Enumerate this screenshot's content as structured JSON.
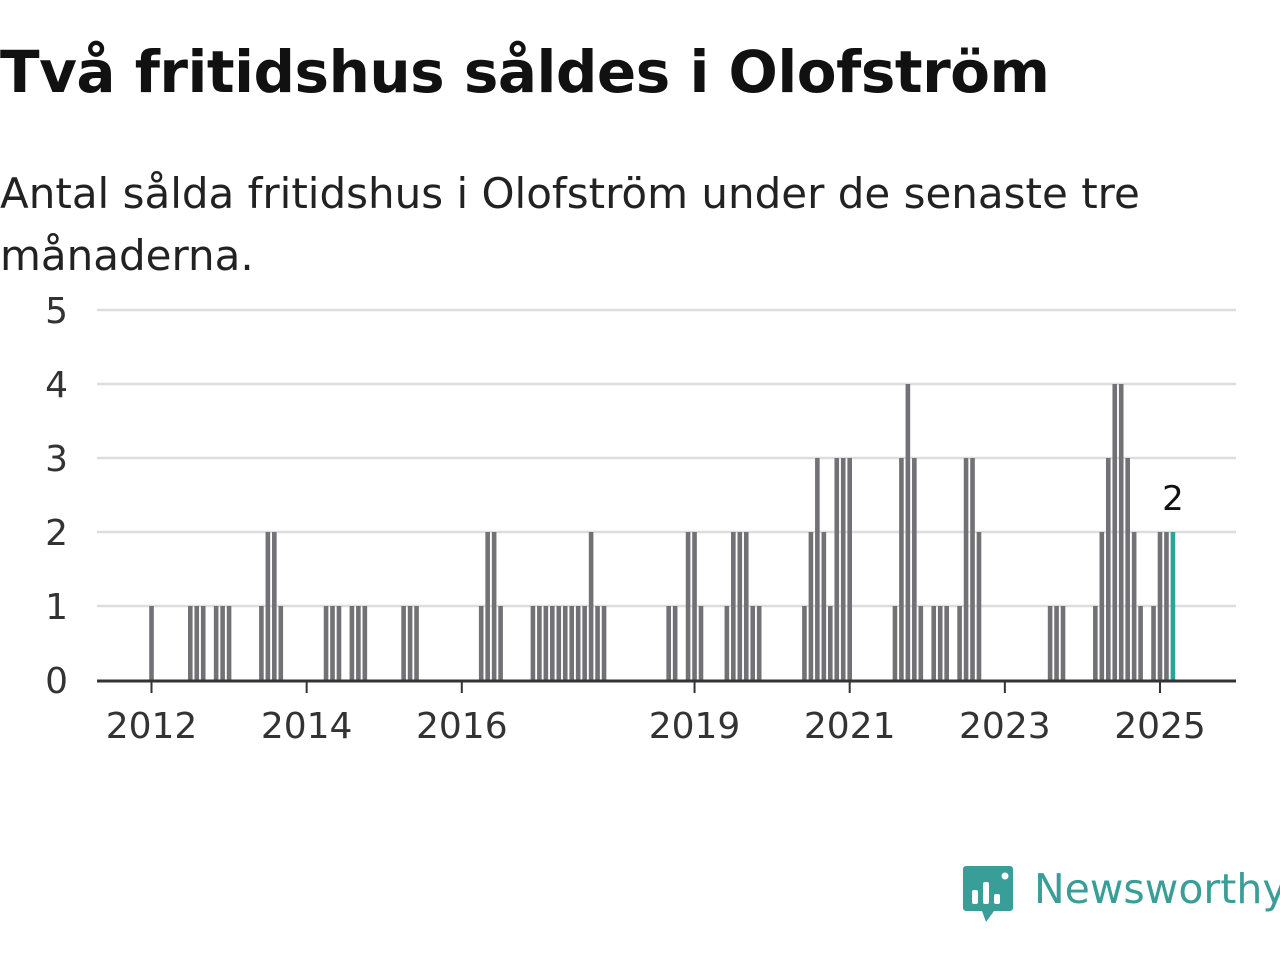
{
  "title": "Två fritidshus såldes i Olofström",
  "subtitle": "Antal sålda fritidshus i Olofström under de senaste tre månaderna.",
  "brand": {
    "name": "Newsworthy",
    "icon": "newsworthy-logo-icon",
    "color": "#3a9e98"
  },
  "colors": {
    "bar": "#727176",
    "highlight": "#2aa39a",
    "grid": "#dddddd",
    "axis": "#333333",
    "text": "#333333"
  },
  "chart_data": {
    "type": "bar",
    "title": "Två fritidshus såldes i Olofström",
    "subtitle": "Antal sålda fritidshus i Olofström under de senaste tre månaderna.",
    "xlabel": "",
    "ylabel": "",
    "ylim": [
      0,
      5
    ],
    "yticks": [
      "0",
      "1",
      "2",
      "3",
      "4",
      "5"
    ],
    "xticks": [
      "2012",
      "2014",
      "2016",
      "2019",
      "2021",
      "2023",
      "2025"
    ],
    "grid": true,
    "last_value_label": "2",
    "bars": [
      [
        "2012-01",
        1
      ],
      [
        "2012-07",
        1
      ],
      [
        "2012-08",
        1
      ],
      [
        "2012-09",
        1
      ],
      [
        "2012-11",
        1
      ],
      [
        "2012-12",
        1
      ],
      [
        "2013-01",
        1
      ],
      [
        "2013-06",
        1
      ],
      [
        "2013-07",
        2
      ],
      [
        "2013-08",
        2
      ],
      [
        "2013-09",
        1
      ],
      [
        "2014-04",
        1
      ],
      [
        "2014-05",
        1
      ],
      [
        "2014-06",
        1
      ],
      [
        "2014-08",
        1
      ],
      [
        "2014-09",
        1
      ],
      [
        "2014-10",
        1
      ],
      [
        "2015-04",
        1
      ],
      [
        "2015-05",
        1
      ],
      [
        "2015-06",
        1
      ],
      [
        "2016-04",
        1
      ],
      [
        "2016-05",
        2
      ],
      [
        "2016-06",
        2
      ],
      [
        "2016-07",
        1
      ],
      [
        "2016-12",
        1
      ],
      [
        "2017-01",
        1
      ],
      [
        "2017-02",
        1
      ],
      [
        "2017-03",
        1
      ],
      [
        "2017-04",
        1
      ],
      [
        "2017-05",
        1
      ],
      [
        "2017-06",
        1
      ],
      [
        "2017-07",
        1
      ],
      [
        "2017-08",
        1
      ],
      [
        "2017-09",
        2
      ],
      [
        "2017-10",
        1
      ],
      [
        "2017-11",
        1
      ],
      [
        "2018-09",
        1
      ],
      [
        "2018-10",
        1
      ],
      [
        "2018-12",
        2
      ],
      [
        "2019-01",
        2
      ],
      [
        "2019-02",
        1
      ],
      [
        "2019-06",
        1
      ],
      [
        "2019-07",
        2
      ],
      [
        "2019-08",
        2
      ],
      [
        "2019-09",
        2
      ],
      [
        "2019-10",
        1
      ],
      [
        "2019-11",
        1
      ],
      [
        "2020-06",
        1
      ],
      [
        "2020-07",
        2
      ],
      [
        "2020-08",
        3
      ],
      [
        "2020-09",
        2
      ],
      [
        "2020-10",
        1
      ],
      [
        "2020-11",
        3
      ],
      [
        "2020-12",
        3
      ],
      [
        "2021-01",
        3
      ],
      [
        "2021-08",
        1
      ],
      [
        "2021-09",
        3
      ],
      [
        "2021-10",
        4
      ],
      [
        "2021-11",
        3
      ],
      [
        "2021-12",
        1
      ],
      [
        "2022-02",
        1
      ],
      [
        "2022-03",
        1
      ],
      [
        "2022-04",
        1
      ],
      [
        "2022-06",
        1
      ],
      [
        "2022-07",
        3
      ],
      [
        "2022-08",
        3
      ],
      [
        "2022-09",
        2
      ],
      [
        "2023-08",
        1
      ],
      [
        "2023-09",
        1
      ],
      [
        "2023-10",
        1
      ],
      [
        "2024-03",
        1
      ],
      [
        "2024-04",
        2
      ],
      [
        "2024-05",
        3
      ],
      [
        "2024-06",
        4
      ],
      [
        "2024-07",
        4
      ],
      [
        "2024-08",
        3
      ],
      [
        "2024-09",
        2
      ],
      [
        "2024-10",
        1
      ],
      [
        "2024-12",
        1
      ],
      [
        "2025-01",
        2
      ],
      [
        "2025-02",
        2
      ],
      [
        "2025-03",
        2
      ]
    ]
  }
}
